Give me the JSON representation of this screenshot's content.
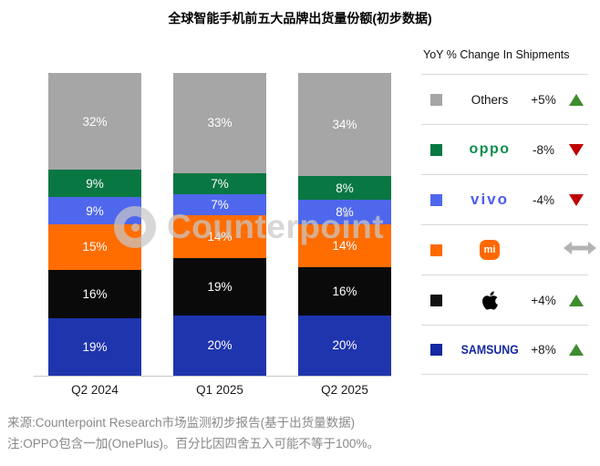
{
  "title": "全球智能手机前五大品牌出货量份额(初步数据)",
  "watermark": {
    "brand": "Counterpoint"
  },
  "chart_data": {
    "type": "bar",
    "variant": "stacked-percent",
    "title": "全球智能手机前五大品牌出货量份额(初步数据)",
    "categories": [
      "Q2 2024",
      "Q1 2025",
      "Q2 2025"
    ],
    "unit": "%",
    "ylim": [
      0,
      100
    ],
    "grid": false,
    "legend_position": "right",
    "stack_order": "top-to-bottom",
    "series": [
      {
        "name": "Others",
        "color": "#a6a6a6",
        "values": [
          32,
          33,
          34
        ]
      },
      {
        "name": "OPPO",
        "color": "#087742",
        "values": [
          9,
          7,
          8
        ]
      },
      {
        "name": "vivo",
        "color": "#4f67ec",
        "values": [
          9,
          7,
          8
        ]
      },
      {
        "name": "Xiaomi",
        "color": "#ff6d00",
        "values": [
          15,
          14,
          14
        ]
      },
      {
        "name": "Apple",
        "color": "#0a0a0a",
        "values": [
          16,
          19,
          16
        ]
      },
      {
        "name": "Samsung",
        "color": "#1f35ae",
        "values": [
          19,
          20,
          20
        ]
      }
    ]
  },
  "legend": {
    "header": "YoY % Change In Shipments",
    "rows": [
      {
        "brand": "Others",
        "swatch": "#a6a6a6",
        "change": "+5%",
        "direction": "up"
      },
      {
        "brand": "OPPO",
        "swatch": "#087742",
        "change": "-8%",
        "direction": "down"
      },
      {
        "brand": "vivo",
        "swatch": "#4f67ec",
        "change": "-4%",
        "direction": "down"
      },
      {
        "brand": "Xiaomi",
        "swatch": "#ff6900",
        "change": "",
        "direction": "flat"
      },
      {
        "brand": "Apple",
        "swatch": "#111111",
        "change": "+4%",
        "direction": "up"
      },
      {
        "brand": "Samsung",
        "swatch": "#1428a0",
        "change": "+8%",
        "direction": "up"
      }
    ]
  },
  "logos": {
    "others_text": "Others",
    "oppo_text": "oppo",
    "vivo_text": "vivo",
    "xiaomi_text": "mi",
    "samsung_text": "SAMSUNG"
  },
  "footer": {
    "source_line": "来源:Counterpoint Research市场监测初步报告(基于出货量数据)",
    "note_line": "注:OPPO包含一加(OnePlus)。百分比因四舍五入可能不等于100%。"
  },
  "colors": {
    "up_triangle": "#3f8c2f",
    "down_triangle": "#c00000",
    "flat_arrow": "#b3b3b3",
    "divider": "#d9d9d9",
    "axis_line": "#c8c8c8",
    "footer_text": "#898989"
  }
}
